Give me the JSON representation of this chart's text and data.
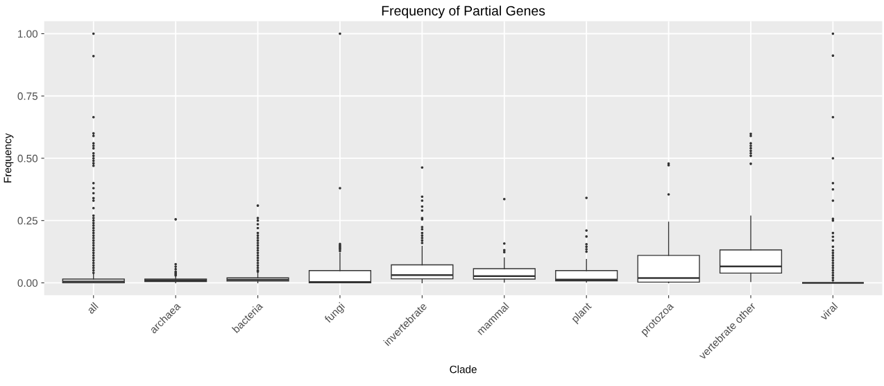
{
  "chart_data": {
    "type": "box",
    "title": "Frequency of Partial Genes",
    "xlabel": "Clade",
    "ylabel": "Frequency",
    "categories": [
      "all",
      "archaea",
      "bacteria",
      "fungi",
      "invertebrate",
      "mammal",
      "plant",
      "protozoa",
      "vertebrate other",
      "viral"
    ],
    "boxes": [
      {
        "low": 0.0,
        "q1": 0.0,
        "median": 0.005,
        "q3": 0.015,
        "high": 0.037,
        "outliers": [
          1.0,
          0.91,
          0.665,
          0.6,
          0.59,
          0.56,
          0.55,
          0.54,
          0.52,
          0.51,
          0.5,
          0.49,
          0.48,
          0.47,
          0.4,
          0.38,
          0.36,
          0.34,
          0.33,
          0.3,
          0.27,
          0.26,
          0.25,
          0.24,
          0.23,
          0.22,
          0.21,
          0.2,
          0.19,
          0.18,
          0.17,
          0.16,
          0.15,
          0.14,
          0.13,
          0.12,
          0.11,
          0.1,
          0.09,
          0.08,
          0.07,
          0.06,
          0.05,
          0.04
        ]
      },
      {
        "low": 0.0,
        "q1": 0.005,
        "median": 0.01,
        "q3": 0.015,
        "high": 0.025,
        "outliers": [
          0.255,
          0.075,
          0.065,
          0.055,
          0.045,
          0.04,
          0.035,
          0.03
        ]
      },
      {
        "low": 0.0,
        "q1": 0.007,
        "median": 0.012,
        "q3": 0.02,
        "high": 0.04,
        "outliers": [
          0.31,
          0.26,
          0.25,
          0.235,
          0.22,
          0.2,
          0.19,
          0.18,
          0.17,
          0.16,
          0.15,
          0.14,
          0.13,
          0.12,
          0.11,
          0.1,
          0.09,
          0.08,
          0.07,
          0.06,
          0.05,
          0.045
        ]
      },
      {
        "low": 0.0,
        "q1": 0.0,
        "median": 0.003,
        "q3": 0.049,
        "high": 0.12,
        "outliers": [
          1.0,
          0.38,
          0.156,
          0.15,
          0.145,
          0.14,
          0.135,
          0.128
        ]
      },
      {
        "low": 0.0,
        "q1": 0.016,
        "median": 0.031,
        "q3": 0.072,
        "high": 0.147,
        "outliers": [
          0.463,
          0.346,
          0.33,
          0.306,
          0.29,
          0.26,
          0.255,
          0.224,
          0.215,
          0.2,
          0.19,
          0.18,
          0.17,
          0.16
        ]
      },
      {
        "low": 0.003,
        "q1": 0.015,
        "median": 0.027,
        "q3": 0.057,
        "high": 0.1,
        "outliers": [
          0.336,
          0.158,
          0.131,
          0.123
        ]
      },
      {
        "low": 0.003,
        "q1": 0.008,
        "median": 0.013,
        "q3": 0.049,
        "high": 0.094,
        "outliers": [
          0.341,
          0.21,
          0.186,
          0.155,
          0.145,
          0.135,
          0.125
        ]
      },
      {
        "low": 0.0,
        "q1": 0.003,
        "median": 0.019,
        "q3": 0.11,
        "high": 0.244,
        "outliers": [
          0.479,
          0.472,
          0.355
        ]
      },
      {
        "low": 0.005,
        "q1": 0.039,
        "median": 0.066,
        "q3": 0.132,
        "high": 0.268,
        "outliers": [
          0.598,
          0.59,
          0.56,
          0.55,
          0.54,
          0.53,
          0.52,
          0.51,
          0.478
        ]
      },
      {
        "low": 0.0,
        "q1": 0.0,
        "median": 0.0,
        "q3": 0.0,
        "high": 0.003,
        "outliers": [
          1.0,
          0.912,
          0.665,
          0.5,
          0.4,
          0.375,
          0.33,
          0.257,
          0.25,
          0.2,
          0.185,
          0.17,
          0.145,
          0.13,
          0.12,
          0.11,
          0.1,
          0.09,
          0.08,
          0.07,
          0.06,
          0.05,
          0.04,
          0.03,
          0.02,
          0.01
        ]
      }
    ],
    "ylim": [
      -0.05,
      1.05
    ],
    "yticks": [
      {
        "value": 0,
        "label": "0.00"
      },
      {
        "value": 0.25,
        "label": "0.25"
      },
      {
        "value": 0.5,
        "label": "0.50"
      },
      {
        "value": 0.75,
        "label": "0.75"
      },
      {
        "value": 1,
        "label": "1.00"
      }
    ],
    "grid": true
  }
}
